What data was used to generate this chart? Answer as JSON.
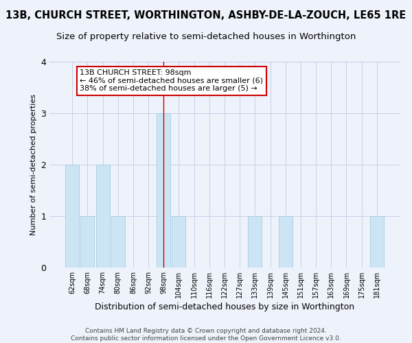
{
  "title": "13B, CHURCH STREET, WORTHINGTON, ASHBY-DE-LA-ZOUCH, LE65 1RE",
  "subtitle": "Size of property relative to semi-detached houses in Worthington",
  "xlabel": "Distribution of semi-detached houses by size in Worthington",
  "ylabel": "Number of semi-detached properties",
  "categories": [
    "62sqm",
    "68sqm",
    "74sqm",
    "80sqm",
    "86sqm",
    "92sqm",
    "98sqm",
    "104sqm",
    "110sqm",
    "116sqm",
    "122sqm",
    "127sqm",
    "133sqm",
    "139sqm",
    "145sqm",
    "151sqm",
    "157sqm",
    "163sqm",
    "169sqm",
    "175sqm",
    "181sqm"
  ],
  "values": [
    2,
    1,
    2,
    1,
    0,
    0,
    3,
    1,
    0,
    0,
    0,
    0,
    1,
    0,
    1,
    0,
    0,
    0,
    0,
    0,
    1
  ],
  "highlight_index": 6,
  "bar_color": "#cce5f5",
  "bar_edge_color": "#a8cce0",
  "highlight_line_color": "#cc0000",
  "annotation_line1": "13B CHURCH STREET: 98sqm",
  "annotation_line2": "← 46% of semi-detached houses are smaller (6)",
  "annotation_line3": "38% of semi-detached houses are larger (5) →",
  "annotation_box_color": "#ffffff",
  "annotation_border_color": "#cc0000",
  "ylim": [
    0,
    4
  ],
  "yticks": [
    0,
    1,
    2,
    3,
    4
  ],
  "footer_line1": "Contains HM Land Registry data © Crown copyright and database right 2024.",
  "footer_line2": "Contains public sector information licensed under the Open Government Licence v3.0.",
  "bg_color": "#eef2fa",
  "grid_color": "#c8cfe8",
  "title_fontsize": 10.5,
  "subtitle_fontsize": 9.5,
  "ylabel_fontsize": 8,
  "xlabel_fontsize": 9,
  "tick_fontsize": 7,
  "footer_fontsize": 6.5,
  "annot_fontsize": 8
}
